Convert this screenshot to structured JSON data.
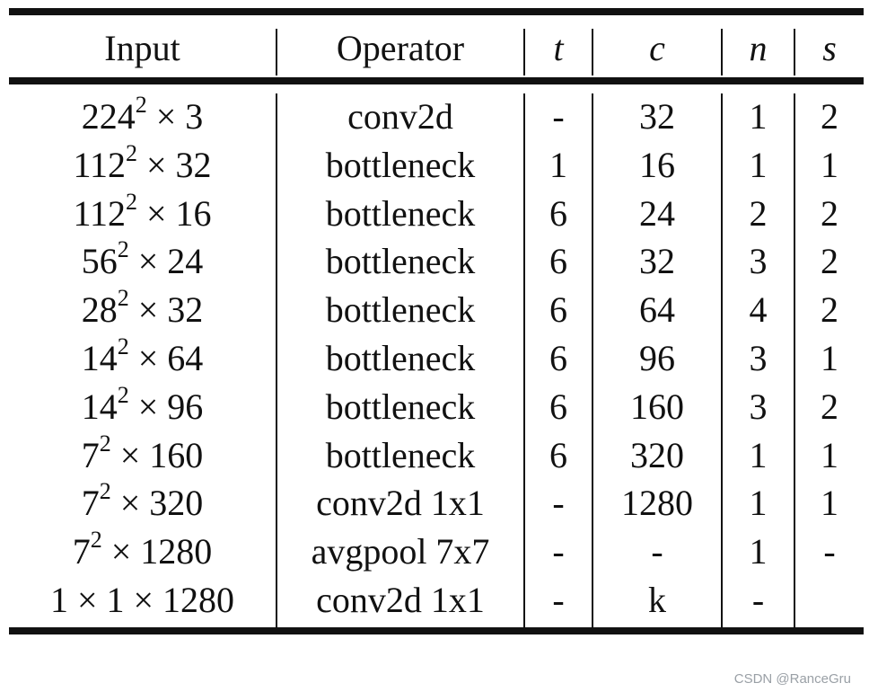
{
  "headers": {
    "input": "Input",
    "operator": "Operator",
    "t": "t",
    "c": "c",
    "n": "n",
    "s": "s"
  },
  "rows": [
    {
      "input_base": "224",
      "input_exp": "2",
      "input_rest": " × 3",
      "operator": "conv2d",
      "t": "-",
      "c": "32",
      "n": "1",
      "s": "2"
    },
    {
      "input_base": "112",
      "input_exp": "2",
      "input_rest": " × 32",
      "operator": "bottleneck",
      "t": "1",
      "c": "16",
      "n": "1",
      "s": "1"
    },
    {
      "input_base": "112",
      "input_exp": "2",
      "input_rest": " × 16",
      "operator": "bottleneck",
      "t": "6",
      "c": "24",
      "n": "2",
      "s": "2"
    },
    {
      "input_base": "56",
      "input_exp": "2",
      "input_rest": " × 24",
      "operator": "bottleneck",
      "t": "6",
      "c": "32",
      "n": "3",
      "s": "2"
    },
    {
      "input_base": "28",
      "input_exp": "2",
      "input_rest": " × 32",
      "operator": "bottleneck",
      "t": "6",
      "c": "64",
      "n": "4",
      "s": "2"
    },
    {
      "input_base": "14",
      "input_exp": "2",
      "input_rest": " × 64",
      "operator": "bottleneck",
      "t": "6",
      "c": "96",
      "n": "3",
      "s": "1"
    },
    {
      "input_base": "14",
      "input_exp": "2",
      "input_rest": " × 96",
      "operator": "bottleneck",
      "t": "6",
      "c": "160",
      "n": "3",
      "s": "2"
    },
    {
      "input_base": "7",
      "input_exp": "2",
      "input_rest": " × 160",
      "operator": "bottleneck",
      "t": "6",
      "c": "320",
      "n": "1",
      "s": "1"
    },
    {
      "input_base": "7",
      "input_exp": "2",
      "input_rest": " × 320",
      "operator": "conv2d 1x1",
      "t": "-",
      "c": "1280",
      "n": "1",
      "s": "1"
    },
    {
      "input_base": "7",
      "input_exp": "2",
      "input_rest": " × 1280",
      "operator": "avgpool 7x7",
      "t": "-",
      "c": "-",
      "n": "1",
      "s": "-"
    },
    {
      "input_base": "1 × 1 × 1280",
      "input_exp": "",
      "input_rest": "",
      "operator": "conv2d 1x1",
      "t": "-",
      "c": "k",
      "n": "-",
      "s": ""
    }
  ],
  "watermark": "CSDN @RanceGru"
}
